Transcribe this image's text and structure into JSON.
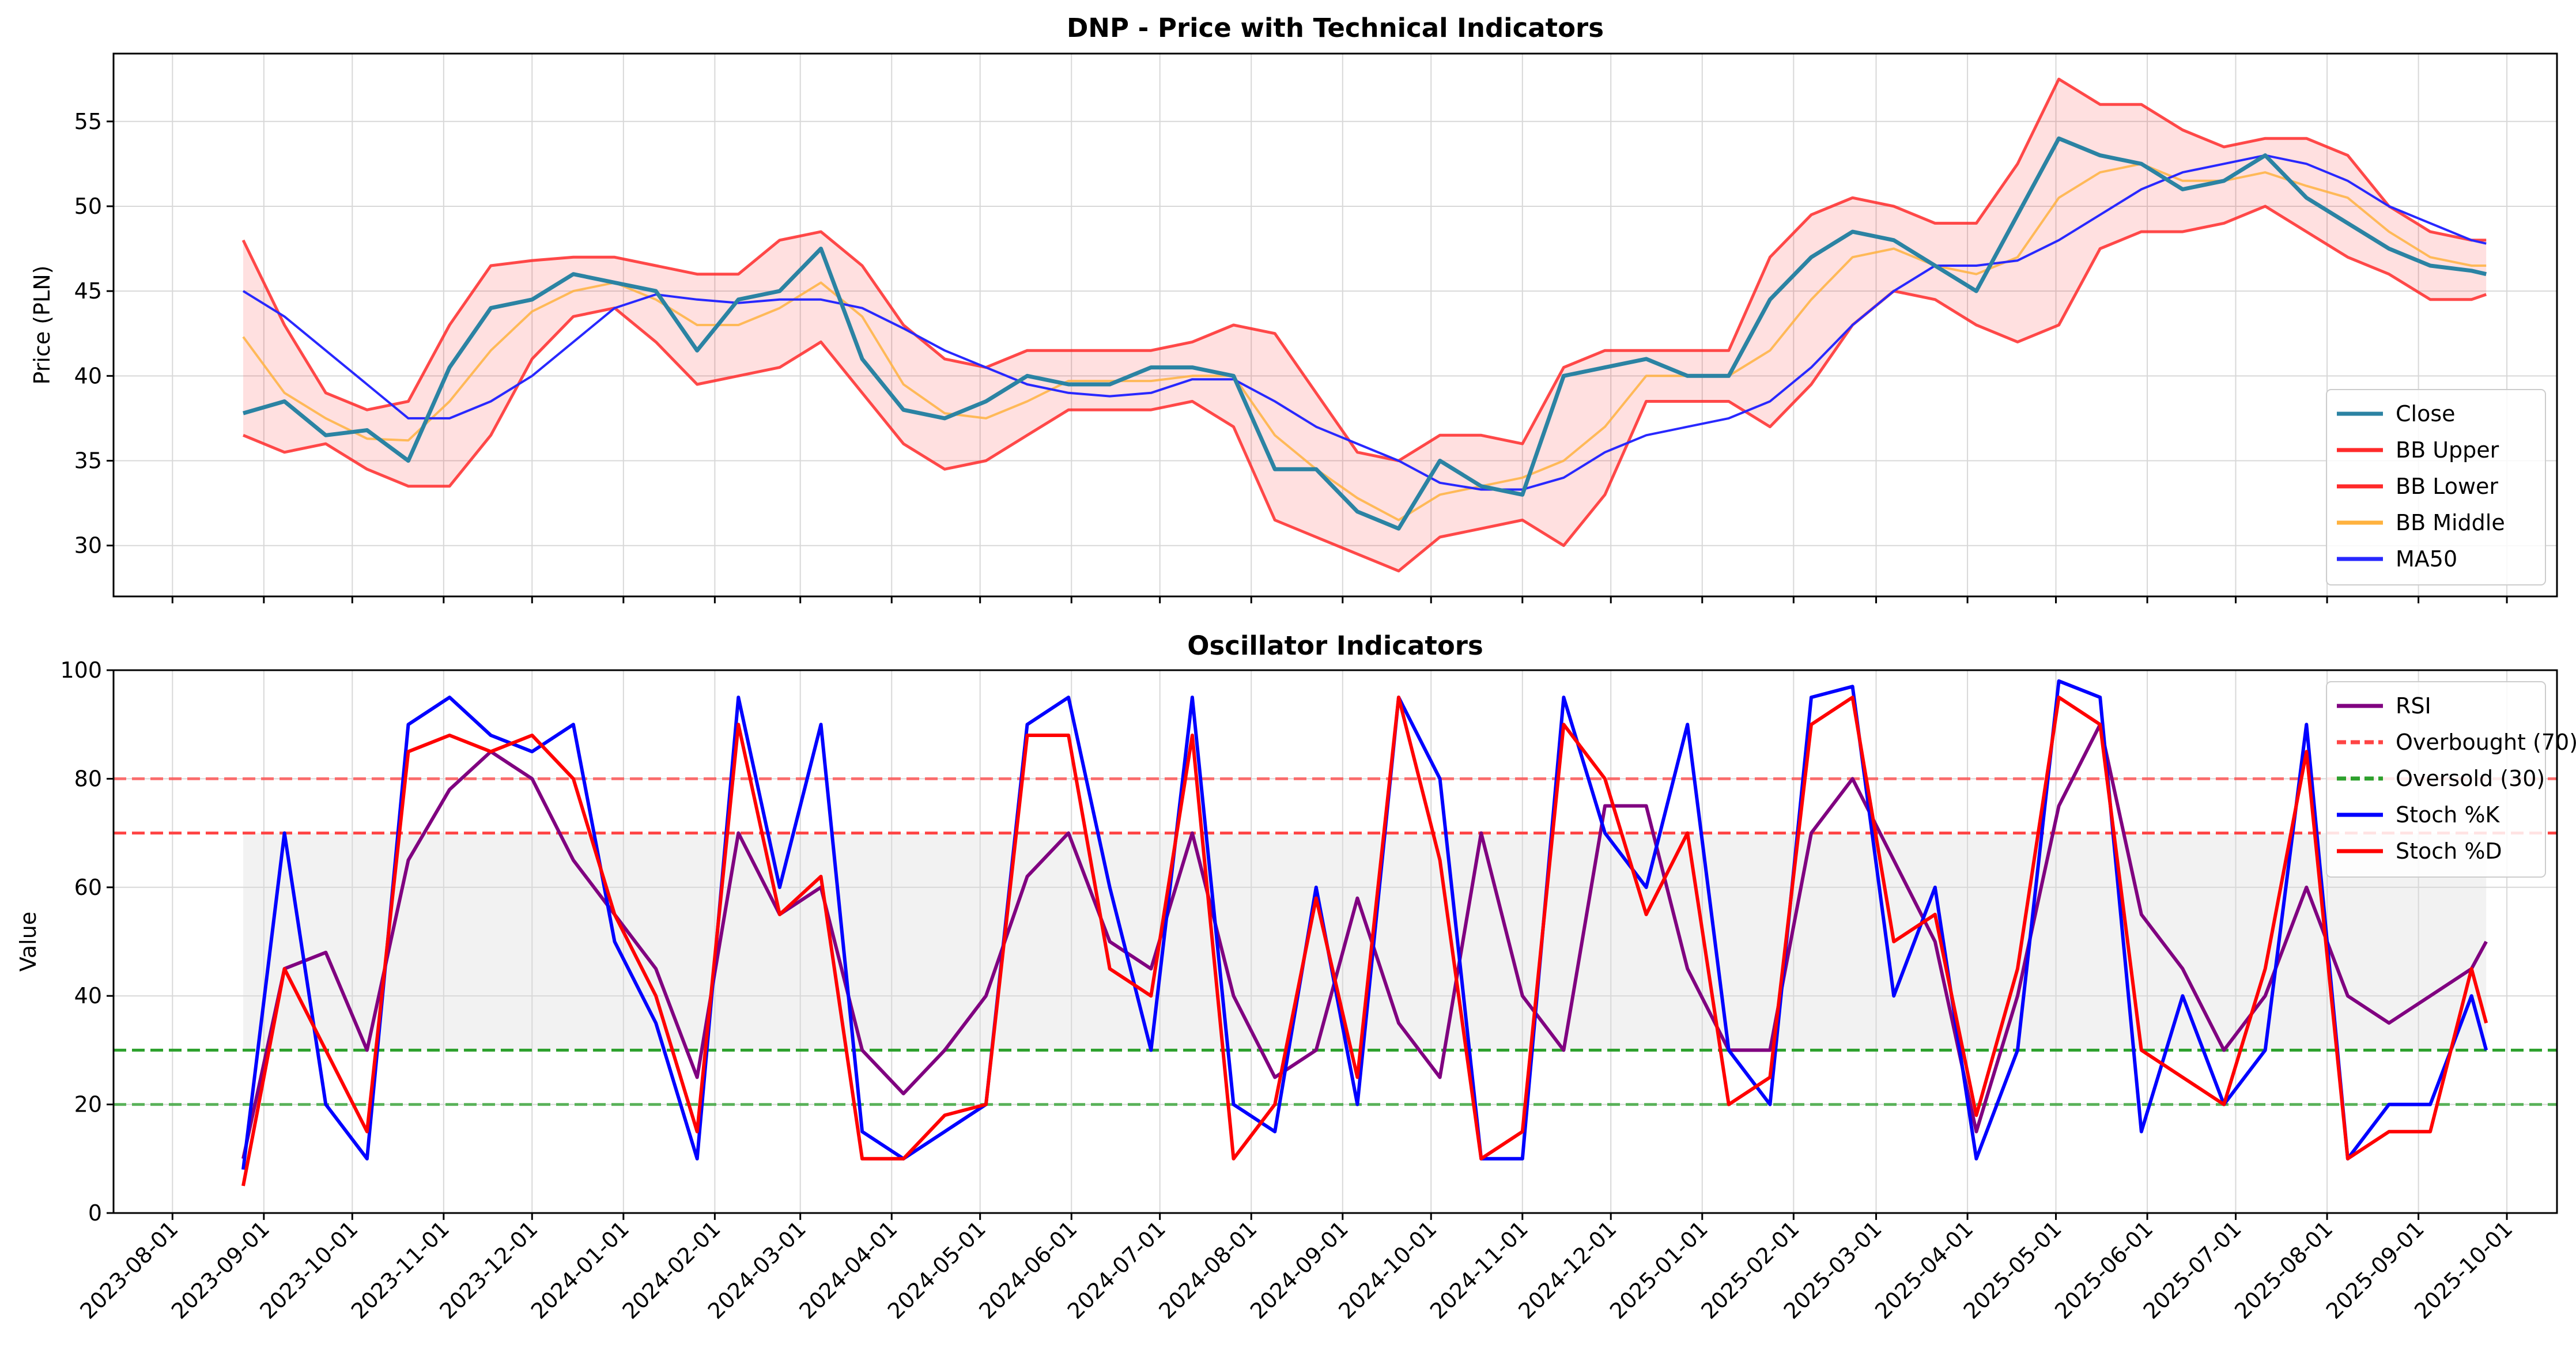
{
  "chart_data": [
    {
      "type": "line",
      "title": "DNP - Price with Technical Indicators",
      "ylabel": "Price (PLN)",
      "xlabel": "",
      "ylim": [
        27,
        59
      ],
      "yticks": [
        30,
        35,
        40,
        45,
        50,
        55
      ],
      "grid": true,
      "legend_position": "lower-right",
      "x_dates": [
        "2023-08-25",
        "2023-09-08",
        "2023-09-22",
        "2023-10-06",
        "2023-10-20",
        "2023-11-03",
        "2023-11-17",
        "2023-12-01",
        "2023-12-15",
        "2023-12-29",
        "2024-01-12",
        "2024-01-26",
        "2024-02-09",
        "2024-02-23",
        "2024-03-08",
        "2024-03-22",
        "2024-04-05",
        "2024-04-19",
        "2024-05-03",
        "2024-05-17",
        "2024-05-31",
        "2024-06-14",
        "2024-06-28",
        "2024-07-12",
        "2024-07-26",
        "2024-08-09",
        "2024-08-23",
        "2024-09-06",
        "2024-09-20",
        "2024-10-04",
        "2024-10-18",
        "2024-11-01",
        "2024-11-15",
        "2024-11-29",
        "2024-12-13",
        "2024-12-27",
        "2025-01-10",
        "2025-01-24",
        "2025-02-07",
        "2025-02-21",
        "2025-03-07",
        "2025-03-21",
        "2025-04-04",
        "2025-04-18",
        "2025-05-02",
        "2025-05-16",
        "2025-05-30",
        "2025-06-13",
        "2025-06-27",
        "2025-07-11",
        "2025-07-25",
        "2025-08-08",
        "2025-08-22",
        "2025-09-05",
        "2025-09-19",
        "2025-09-24"
      ],
      "series": [
        {
          "name": "Close",
          "color": "#2b83a3",
          "width": 7,
          "values": [
            37.8,
            38.5,
            36.5,
            36.8,
            35.0,
            40.5,
            44.0,
            44.5,
            46.0,
            45.5,
            45.0,
            41.5,
            44.5,
            45.0,
            47.5,
            41.0,
            38.0,
            37.5,
            38.5,
            40.0,
            39.5,
            39.5,
            40.5,
            40.5,
            40.0,
            34.5,
            34.5,
            32.0,
            31.0,
            35.0,
            33.5,
            33.0,
            40.0,
            40.5,
            41.0,
            40.0,
            40.0,
            44.5,
            47.0,
            48.5,
            48.0,
            46.5,
            45.0,
            49.5,
            54.0,
            53.0,
            52.5,
            51.0,
            51.5,
            53.0,
            50.5,
            49.0,
            47.5,
            46.5,
            46.2,
            46.0
          ]
        },
        {
          "name": "BB Upper",
          "color": "#ff2a2a",
          "width": 5,
          "values": [
            48.0,
            43.0,
            39.0,
            38.0,
            38.5,
            43.0,
            46.5,
            46.8,
            47.0,
            47.0,
            46.5,
            46.0,
            46.0,
            48.0,
            48.5,
            46.5,
            43.0,
            41.0,
            40.5,
            41.5,
            41.5,
            41.5,
            41.5,
            42.0,
            43.0,
            42.5,
            39.0,
            35.5,
            35.0,
            36.5,
            36.5,
            36.0,
            40.5,
            41.5,
            41.5,
            41.5,
            41.5,
            47.0,
            49.5,
            50.5,
            50.0,
            49.0,
            49.0,
            52.5,
            57.5,
            56.0,
            56.0,
            54.5,
            53.5,
            54.0,
            54.0,
            53.0,
            50.0,
            48.5,
            48.0,
            48.0
          ]
        },
        {
          "name": "BB Lower",
          "color": "#ff2a2a",
          "width": 5,
          "values": [
            36.5,
            35.5,
            36.0,
            34.5,
            33.5,
            33.5,
            36.5,
            41.0,
            43.5,
            44.0,
            42.0,
            39.5,
            40.0,
            40.5,
            42.0,
            39.0,
            36.0,
            34.5,
            35.0,
            36.5,
            38.0,
            38.0,
            38.0,
            38.5,
            37.0,
            31.5,
            30.5,
            29.5,
            28.5,
            30.5,
            31.0,
            31.5,
            30.0,
            33.0,
            38.5,
            38.5,
            38.5,
            37.0,
            39.5,
            43.0,
            45.0,
            44.5,
            43.0,
            42.0,
            43.0,
            47.5,
            48.5,
            48.5,
            49.0,
            50.0,
            48.5,
            47.0,
            46.0,
            44.5,
            44.5,
            44.8
          ]
        },
        {
          "name": "BB Middle",
          "color": "#ffb23f",
          "width": 4,
          "values": [
            42.3,
            39.0,
            37.5,
            36.3,
            36.2,
            38.5,
            41.5,
            43.8,
            45.0,
            45.5,
            44.5,
            43.0,
            43.0,
            44.0,
            45.5,
            43.5,
            39.5,
            37.8,
            37.5,
            38.5,
            39.7,
            39.7,
            39.7,
            40.0,
            40.0,
            36.5,
            34.5,
            32.8,
            31.5,
            33.0,
            33.5,
            34.0,
            35.0,
            37.0,
            40.0,
            40.0,
            40.0,
            41.5,
            44.5,
            47.0,
            47.5,
            46.5,
            46.0,
            47.0,
            50.5,
            52.0,
            52.5,
            51.5,
            51.5,
            52.0,
            51.2,
            50.5,
            48.5,
            47.0,
            46.5,
            46.5
          ]
        },
        {
          "name": "MA50",
          "color": "#2828ff",
          "width": 4,
          "values": [
            45.0,
            43.5,
            41.5,
            39.5,
            37.5,
            37.5,
            38.5,
            40.0,
            42.0,
            44.0,
            44.8,
            44.5,
            44.3,
            44.5,
            44.5,
            44.0,
            42.8,
            41.5,
            40.5,
            39.5,
            39.0,
            38.8,
            39.0,
            39.8,
            39.8,
            38.5,
            37.0,
            36.0,
            35.0,
            33.7,
            33.3,
            33.3,
            34.0,
            35.5,
            36.5,
            37.0,
            37.5,
            38.5,
            40.5,
            43.0,
            45.0,
            46.5,
            46.5,
            46.8,
            48.0,
            49.5,
            51.0,
            52.0,
            52.5,
            53.0,
            52.5,
            51.5,
            50.0,
            49.0,
            48.0,
            47.8
          ]
        }
      ]
    },
    {
      "type": "line",
      "title": "Oscillator Indicators",
      "ylabel": "Value",
      "xlabel": "",
      "ylim": [
        0,
        100
      ],
      "yticks": [
        0,
        20,
        40,
        60,
        80,
        100
      ],
      "grid": true,
      "legend_position": "upper-right",
      "x_ticks": [
        "2023-08-01",
        "2023-09-01",
        "2023-10-01",
        "2023-11-01",
        "2023-12-01",
        "2024-01-01",
        "2024-02-01",
        "2024-03-01",
        "2024-04-01",
        "2024-05-01",
        "2024-06-01",
        "2024-07-01",
        "2024-08-01",
        "2024-09-01",
        "2024-10-01",
        "2024-11-01",
        "2024-12-01",
        "2025-01-01",
        "2025-02-01",
        "2025-03-01",
        "2025-04-01",
        "2025-05-01",
        "2025-06-01",
        "2025-07-01",
        "2025-08-01",
        "2025-09-01",
        "2025-10-01"
      ],
      "shaded_band": [
        30,
        70
      ],
      "hlines": [
        {
          "y": 80,
          "color": "#ff4444",
          "style": "dashed"
        },
        {
          "y": 70,
          "color": "#ff4444",
          "style": "dashed"
        },
        {
          "y": 30,
          "color": "#2ca02c",
          "style": "dashed"
        },
        {
          "y": 20,
          "color": "#2ca02c",
          "style": "dashed"
        }
      ],
      "legend_entries": [
        {
          "label": "RSI",
          "color": "#800080",
          "style": "solid"
        },
        {
          "label": "Overbought (70)",
          "color": "#ff4444",
          "style": "dashed"
        },
        {
          "label": "Oversold (30)",
          "color": "#2ca02c",
          "style": "dashed"
        },
        {
          "label": "Stoch %K",
          "color": "#0000ff",
          "style": "solid"
        },
        {
          "label": "Stoch %D",
          "color": "#ff0000",
          "style": "solid"
        }
      ],
      "x_dates": [
        "2023-08-25",
        "2023-09-08",
        "2023-09-22",
        "2023-10-06",
        "2023-10-20",
        "2023-11-03",
        "2023-11-17",
        "2023-12-01",
        "2023-12-15",
        "2023-12-29",
        "2024-01-12",
        "2024-01-26",
        "2024-02-09",
        "2024-02-23",
        "2024-03-08",
        "2024-03-22",
        "2024-04-05",
        "2024-04-19",
        "2024-05-03",
        "2024-05-17",
        "2024-05-31",
        "2024-06-14",
        "2024-06-28",
        "2024-07-12",
        "2024-07-26",
        "2024-08-09",
        "2024-08-23",
        "2024-09-06",
        "2024-09-20",
        "2024-10-04",
        "2024-10-18",
        "2024-11-01",
        "2024-11-15",
        "2024-11-29",
        "2024-12-13",
        "2024-12-27",
        "2025-01-10",
        "2025-01-24",
        "2025-02-07",
        "2025-02-21",
        "2025-03-07",
        "2025-03-21",
        "2025-04-04",
        "2025-04-18",
        "2025-05-02",
        "2025-05-16",
        "2025-05-30",
        "2025-06-13",
        "2025-06-27",
        "2025-07-11",
        "2025-07-25",
        "2025-08-08",
        "2025-08-22",
        "2025-09-05",
        "2025-09-19",
        "2025-09-24"
      ],
      "series": [
        {
          "name": "RSI",
          "color": "#800080",
          "width": 6,
          "values": [
            10,
            45,
            48,
            30,
            65,
            78,
            85,
            80,
            65,
            55,
            45,
            25,
            70,
            55,
            60,
            30,
            22,
            30,
            40,
            62,
            70,
            50,
            45,
            70,
            40,
            25,
            30,
            58,
            35,
            25,
            70,
            40,
            30,
            75,
            75,
            45,
            30,
            30,
            70,
            80,
            65,
            50,
            15,
            40,
            75,
            90,
            55,
            45,
            30,
            40,
            60,
            40,
            35,
            40,
            45,
            50
          ]
        },
        {
          "name": "Stoch %K",
          "color": "#0000ff",
          "width": 6,
          "values": [
            8,
            70,
            20,
            10,
            90,
            95,
            88,
            85,
            90,
            50,
            35,
            10,
            95,
            60,
            90,
            15,
            10,
            15,
            20,
            90,
            95,
            60,
            30,
            95,
            20,
            15,
            60,
            20,
            95,
            80,
            10,
            10,
            95,
            70,
            60,
            90,
            30,
            20,
            95,
            97,
            40,
            60,
            10,
            30,
            98,
            95,
            15,
            40,
            20,
            30,
            90,
            10,
            20,
            20,
            40,
            30
          ]
        },
        {
          "name": "Stoch %D",
          "color": "#ff0000",
          "width": 6,
          "values": [
            5,
            45,
            30,
            15,
            85,
            88,
            85,
            88,
            80,
            55,
            40,
            15,
            90,
            55,
            62,
            10,
            10,
            18,
            20,
            88,
            88,
            45,
            40,
            88,
            10,
            20,
            58,
            25,
            95,
            65,
            10,
            15,
            90,
            80,
            55,
            70,
            20,
            25,
            90,
            95,
            50,
            55,
            18,
            45,
            95,
            90,
            30,
            25,
            20,
            45,
            85,
            10,
            15,
            15,
            45,
            35
          ]
        }
      ]
    }
  ]
}
